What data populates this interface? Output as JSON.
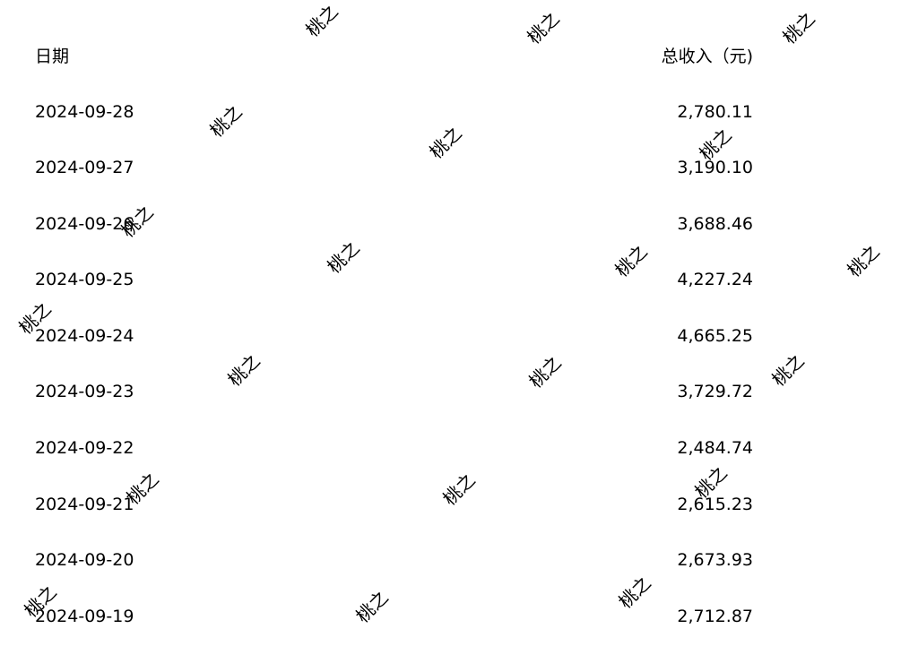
{
  "table": {
    "header": {
      "date_label": "日期",
      "amount_label": "总收入（元)"
    },
    "rows": [
      {
        "date": "2024-09-28",
        "amount": "2,780.11"
      },
      {
        "date": "2024-09-27",
        "amount": "3,190.10"
      },
      {
        "date": "2024-09-26",
        "amount": "3,688.46"
      },
      {
        "date": "2024-09-25",
        "amount": "4,227.24"
      },
      {
        "date": "2024-09-24",
        "amount": "4,665.25"
      },
      {
        "date": "2024-09-23",
        "amount": "3,729.72"
      },
      {
        "date": "2024-09-22",
        "amount": "2,484.74"
      },
      {
        "date": "2024-09-21",
        "amount": "2,615.23"
      },
      {
        "date": "2024-09-20",
        "amount": "2,673.93"
      },
      {
        "date": "2024-09-19",
        "amount": "2,712.87"
      }
    ]
  },
  "watermark": {
    "text": "桃之"
  }
}
